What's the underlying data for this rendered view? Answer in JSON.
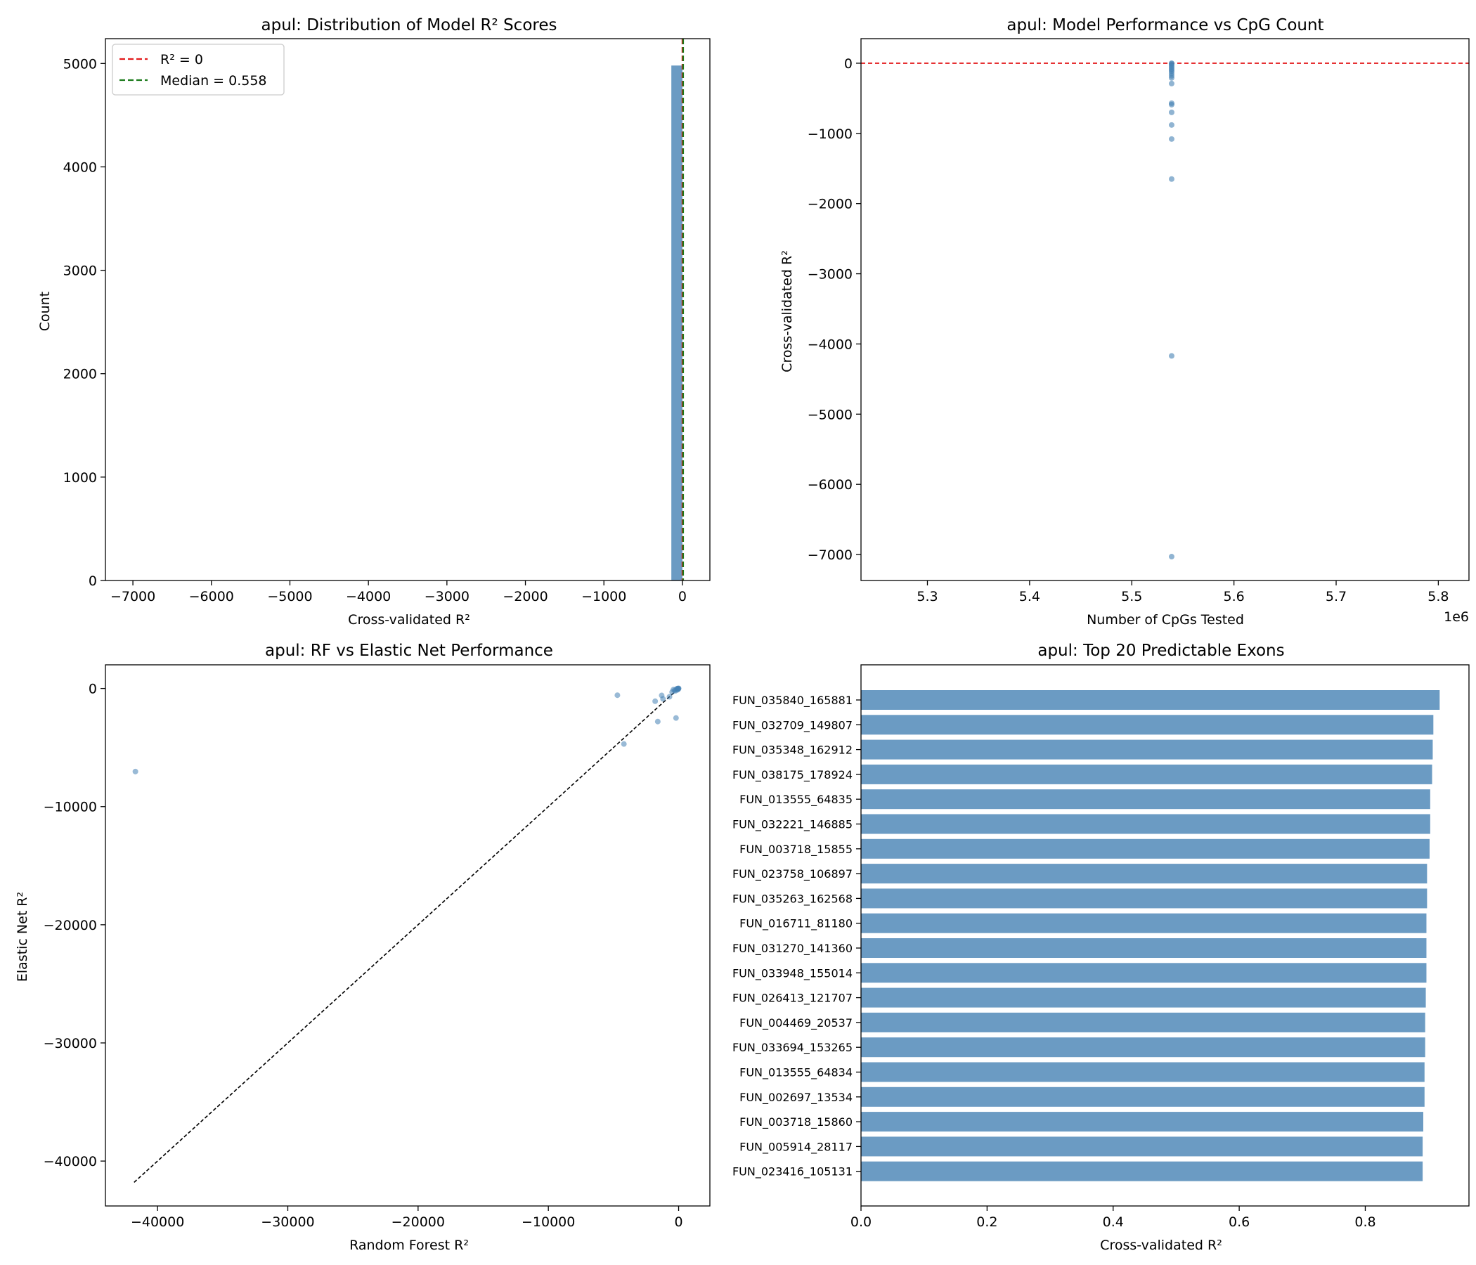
{
  "colors": {
    "bar": "#4682b4",
    "reference_red": "#e31a1c",
    "median_green": "#1a7a1a",
    "diagonal": "#000000"
  },
  "chart_data": [
    {
      "type": "bar",
      "title": "apul: Distribution of Model R² Scores",
      "xlabel": "Cross-validated R²",
      "ylabel": "Count",
      "xlim": [
        -7350,
        350
      ],
      "ylim": [
        0,
        5240
      ],
      "xticks": [
        -7000,
        -6000,
        -5000,
        -4000,
        -3000,
        -2000,
        -1000,
        0
      ],
      "yticks": [
        0,
        1000,
        2000,
        3000,
        4000,
        5000
      ],
      "bins": [
        {
          "x0": -141,
          "x1": 0,
          "count": 4980
        }
      ],
      "reference_lines": [
        {
          "label": "R² = 0",
          "x": 0,
          "color": "red",
          "style": "dashed"
        },
        {
          "label": "Median = 0.558",
          "x": 0.558,
          "color": "green",
          "style": "dashed"
        }
      ],
      "legend": "top-left"
    },
    {
      "type": "scatter",
      "title": "apul: Model Performance vs CpG Count",
      "xlabel": "Number of CpGs Tested",
      "ylabel": "Cross-validated R²",
      "x_offset_label": "1e6",
      "xlim": [
        5.235,
        5.83
      ],
      "ylim": [
        -7370,
        350
      ],
      "xticks": [
        5.3,
        5.4,
        5.5,
        5.6,
        5.7,
        5.8
      ],
      "yticks": [
        -7000,
        -6000,
        -5000,
        -4000,
        -3000,
        -2000,
        -1000,
        0
      ],
      "reference_line_y": 0,
      "points": [
        {
          "x": 5.539,
          "y": -7030
        },
        {
          "x": 5.539,
          "y": -4170
        },
        {
          "x": 5.539,
          "y": -1650
        },
        {
          "x": 5.539,
          "y": -1080
        },
        {
          "x": 5.539,
          "y": -880
        },
        {
          "x": 5.539,
          "y": -700
        },
        {
          "x": 5.539,
          "y": -590
        },
        {
          "x": 5.539,
          "y": -570
        },
        {
          "x": 5.539,
          "y": -290
        },
        {
          "x": 5.539,
          "y": -210
        },
        {
          "x": 5.539,
          "y": -180
        },
        {
          "x": 5.539,
          "y": -150
        },
        {
          "x": 5.539,
          "y": -120
        },
        {
          "x": 5.539,
          "y": -100
        },
        {
          "x": 5.539,
          "y": -80
        },
        {
          "x": 5.539,
          "y": -60
        },
        {
          "x": 5.539,
          "y": -40
        },
        {
          "x": 5.539,
          "y": -20
        },
        {
          "x": 5.539,
          "y": -5
        },
        {
          "x": 5.539,
          "y": 0
        }
      ]
    },
    {
      "type": "scatter",
      "title": "apul: RF vs Elastic Net Performance",
      "xlabel": "Random Forest R²",
      "ylabel": "Elastic Net R²",
      "xlim": [
        -44000,
        2400
      ],
      "ylim": [
        -43800,
        2000
      ],
      "xticks": [
        -40000,
        -30000,
        -20000,
        -10000,
        0
      ],
      "yticks": [
        -40000,
        -30000,
        -20000,
        -10000,
        0
      ],
      "diagonal": [
        -41800,
        0
      ],
      "points": [
        {
          "x": -41700,
          "y": -7030
        },
        {
          "x": -4700,
          "y": -570
        },
        {
          "x": -4200,
          "y": -4700
        },
        {
          "x": -1800,
          "y": -1080
        },
        {
          "x": -1600,
          "y": -2800
        },
        {
          "x": -1300,
          "y": -590
        },
        {
          "x": -1200,
          "y": -880
        },
        {
          "x": -700,
          "y": -700
        },
        {
          "x": -500,
          "y": -300
        },
        {
          "x": -300,
          "y": -150
        },
        {
          "x": -200,
          "y": -2500
        },
        {
          "x": -150,
          "y": -40
        },
        {
          "x": -100,
          "y": -120
        },
        {
          "x": -60,
          "y": -20
        },
        {
          "x": -30,
          "y": -60
        },
        {
          "x": -10,
          "y": 0
        },
        {
          "x": 0,
          "y": 0
        },
        {
          "x": -400,
          "y": -100
        },
        {
          "x": -250,
          "y": -200
        },
        {
          "x": -80,
          "y": -10
        }
      ]
    },
    {
      "type": "bar",
      "orientation": "horizontal",
      "title": "apul: Top 20 Predictable Exons",
      "xlabel": "Cross-validated R²",
      "xlim": [
        0,
        0.9645
      ],
      "xticks": [
        0.0,
        0.2,
        0.4,
        0.6,
        0.8
      ],
      "categories": [
        "FUN_035840_165881",
        "FUN_032709_149807",
        "FUN_035348_162912",
        "FUN_038175_178924",
        "FUN_013555_64835",
        "FUN_032221_146885",
        "FUN_003718_15855",
        "FUN_023758_106897",
        "FUN_035263_162568",
        "FUN_016711_81180",
        "FUN_031270_141360",
        "FUN_033948_155014",
        "FUN_026413_121707",
        "FUN_004469_20537",
        "FUN_033694_153265",
        "FUN_013555_64834",
        "FUN_002697_13534",
        "FUN_003718_15860",
        "FUN_005914_28117",
        "FUN_023416_105131"
      ],
      "values": [
        0.918,
        0.908,
        0.907,
        0.906,
        0.903,
        0.903,
        0.902,
        0.898,
        0.898,
        0.897,
        0.897,
        0.897,
        0.896,
        0.895,
        0.895,
        0.894,
        0.894,
        0.892,
        0.891,
        0.891
      ]
    }
  ]
}
